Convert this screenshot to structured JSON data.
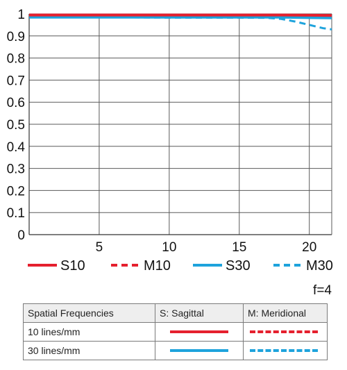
{
  "chart_data": {
    "type": "line",
    "title": "",
    "xlabel": "",
    "ylabel": "",
    "xlim": [
      0,
      21.6
    ],
    "ylim": [
      0,
      1
    ],
    "grid": true,
    "x_ticks": [
      5,
      10,
      15,
      20
    ],
    "y_ticks": [
      0,
      0.1,
      0.2,
      0.3,
      0.4,
      0.5,
      0.6,
      0.7,
      0.8,
      0.9,
      1
    ],
    "y_tick_labels": [
      "0",
      "0.1",
      "0.2",
      "0.3",
      "0.4",
      "0.5",
      "0.6",
      "0.7",
      "0.8",
      "0.9",
      "1"
    ],
    "legend_position": "bottom",
    "series": [
      {
        "name": "S10",
        "color": "#e5202e",
        "style": "solid",
        "x": [
          0,
          5,
          10,
          15,
          18,
          20,
          21.6
        ],
        "y": [
          0.995,
          0.995,
          0.995,
          0.995,
          0.995,
          0.994,
          0.993
        ]
      },
      {
        "name": "M10",
        "color": "#e5202e",
        "style": "dashed",
        "x": [
          0,
          5,
          10,
          15,
          18,
          20,
          21.6
        ],
        "y": [
          0.995,
          0.995,
          0.995,
          0.995,
          0.995,
          0.994,
          0.993
        ]
      },
      {
        "name": "S30",
        "color": "#1ea3dc",
        "style": "solid",
        "x": [
          0,
          5,
          10,
          15,
          18,
          20,
          21.6
        ],
        "y": [
          0.985,
          0.985,
          0.985,
          0.985,
          0.985,
          0.983,
          0.982
        ]
      },
      {
        "name": "M30",
        "color": "#1ea3dc",
        "style": "dashed",
        "x": [
          0,
          2,
          5,
          8,
          10,
          12,
          15,
          17,
          18,
          19,
          20,
          21,
          21.6
        ],
        "y": [
          0.985,
          0.985,
          0.985,
          0.984,
          0.983,
          0.983,
          0.983,
          0.982,
          0.977,
          0.965,
          0.95,
          0.935,
          0.93
        ]
      }
    ],
    "annotation": "f=4"
  },
  "legend_table": {
    "headers": [
      "Spatial Frequencies",
      "S: Sagittal",
      "M: Meridional"
    ],
    "rows": [
      {
        "label": "10 lines/mm",
        "color": "#e5202e"
      },
      {
        "label": "30 lines/mm",
        "color": "#1ea3dc"
      }
    ]
  }
}
